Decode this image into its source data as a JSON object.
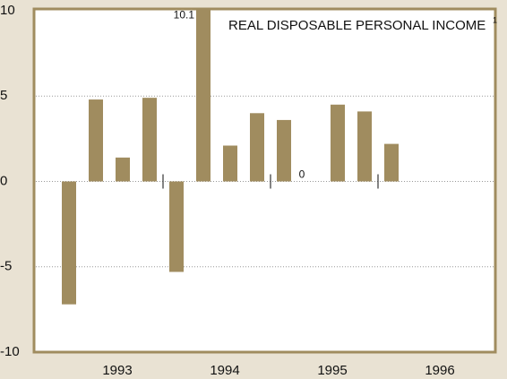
{
  "chart_data": {
    "type": "bar",
    "title": "REAL DISPOSABLE PERSONAL INCOME",
    "title_footnote": "1",
    "categories": [
      null,
      null,
      null,
      null,
      null,
      null,
      null,
      null,
      null,
      null,
      null,
      null,
      null
    ],
    "values": [
      -7.2,
      4.8,
      1.4,
      4.9,
      -5.3,
      10.1,
      2.1,
      4.0,
      3.6,
      0,
      4.5,
      4.1,
      2.2
    ],
    "value_labels": [
      null,
      null,
      null,
      null,
      null,
      "10.1",
      null,
      null,
      null,
      "0",
      null,
      null,
      null
    ],
    "year_labels": [
      "1993",
      "1994",
      "1995",
      "1996"
    ],
    "color": "#a08c5f",
    "ylim": [
      -10,
      10
    ],
    "yticks": [
      -10,
      -5,
      0,
      5,
      10
    ],
    "grid": true
  }
}
